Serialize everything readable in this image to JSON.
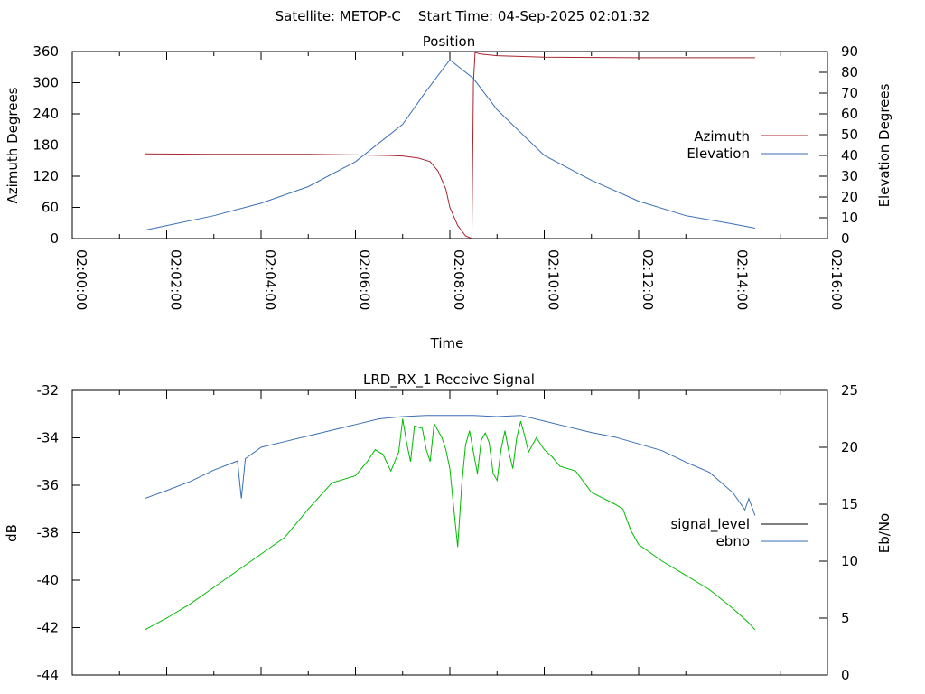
{
  "page_title": "Satellite: METOP-C    Start Time: 04-Sep-2025 02:01:32",
  "colors": {
    "azimuth": "#a8252f",
    "elevation": "#3a6fb5",
    "signal_level": "#000000",
    "ebno": "#3a6fb5",
    "signal_green": "#00bb00",
    "axis": "#000000",
    "background": "#ffffff"
  },
  "chart_data": [
    {
      "type": "line",
      "title": "Position",
      "xlabel": "Time",
      "ylabel": "Azimuth Degrees",
      "y2label": "Elevation Degrees",
      "xlim": [
        "02:00:00",
        "02:16:00"
      ],
      "x_ticks": [
        "02:00:00",
        "02:02:00",
        "02:04:00",
        "02:06:00",
        "02:08:00",
        "02:10:00",
        "02:12:00",
        "02:14:00",
        "02:16:00"
      ],
      "ylim": [
        0,
        360
      ],
      "y_ticks": [
        "0",
        "60",
        "120",
        "180",
        "240",
        "300",
        "360"
      ],
      "y2lim": [
        0,
        90
      ],
      "y2_ticks": [
        "0",
        "10",
        "20",
        "30",
        "40",
        "50",
        "60",
        "70",
        "80",
        "90"
      ],
      "grid": false,
      "legend_position": "right-middle",
      "series": [
        {
          "name": "Azimuth",
          "axis": "y",
          "points": [
            [
              "02:01:32",
              163
            ],
            [
              "02:03:00",
              162
            ],
            [
              "02:04:00",
              162
            ],
            [
              "02:05:00",
              162
            ],
            [
              "02:06:00",
              161
            ],
            [
              "02:06:40",
              160
            ],
            [
              "02:07:00",
              159
            ],
            [
              "02:07:20",
              155
            ],
            [
              "02:07:35",
              148
            ],
            [
              "02:07:45",
              130
            ],
            [
              "02:07:55",
              95
            ],
            [
              "02:08:00",
              60
            ],
            [
              "02:08:10",
              25
            ],
            [
              "02:08:20",
              5
            ],
            [
              "02:08:28",
              0
            ],
            [
              "02:08:30",
              300
            ],
            [
              "02:08:32",
              358
            ],
            [
              "02:08:40",
              355
            ],
            [
              "02:09:00",
              352
            ],
            [
              "02:10:00",
              349
            ],
            [
              "02:12:00",
              348
            ],
            [
              "02:14:00",
              348
            ],
            [
              "02:14:28",
              348
            ]
          ]
        },
        {
          "name": "Elevation",
          "axis": "y2",
          "points": [
            [
              "02:01:32",
              4
            ],
            [
              "02:03:00",
              11
            ],
            [
              "02:04:00",
              17
            ],
            [
              "02:05:00",
              25
            ],
            [
              "02:06:00",
              37
            ],
            [
              "02:07:00",
              55
            ],
            [
              "02:07:30",
              71
            ],
            [
              "02:08:00",
              86
            ],
            [
              "02:08:30",
              77
            ],
            [
              "02:09:00",
              62
            ],
            [
              "02:10:00",
              40
            ],
            [
              "02:11:00",
              28
            ],
            [
              "02:12:00",
              18
            ],
            [
              "02:13:00",
              11
            ],
            [
              "02:14:00",
              7
            ],
            [
              "02:14:28",
              5
            ]
          ]
        }
      ]
    },
    {
      "type": "line",
      "title": "LRD_RX_1 Receive Signal",
      "xlabel": "",
      "ylabel": "dB",
      "y2label": "Eb/No",
      "xlim": [
        "02:00:00",
        "02:16:00"
      ],
      "ylim": [
        -44,
        -32
      ],
      "y_ticks": [
        "-32",
        "-34",
        "-36",
        "-38",
        "-40",
        "-42",
        "-44"
      ],
      "y2lim": [
        0,
        25
      ],
      "y2_ticks": [
        "0",
        "5",
        "10",
        "15",
        "20",
        "25"
      ],
      "grid": false,
      "legend_position": "right-middle",
      "series": [
        {
          "name": "signal_level",
          "axis": "y",
          "points": [
            [
              "02:01:32",
              -42.1
            ],
            [
              "02:02:00",
              -41.6
            ],
            [
              "02:02:30",
              -41.0
            ],
            [
              "02:03:00",
              -40.3
            ],
            [
              "02:03:30",
              -39.6
            ],
            [
              "02:04:00",
              -38.9
            ],
            [
              "02:04:30",
              -38.2
            ],
            [
              "02:05:00",
              -37.0
            ],
            [
              "02:05:30",
              -35.9
            ],
            [
              "02:06:00",
              -35.6
            ],
            [
              "02:06:15",
              -35.0
            ],
            [
              "02:06:25",
              -34.5
            ],
            [
              "02:06:35",
              -34.7
            ],
            [
              "02:06:45",
              -35.4
            ],
            [
              "02:06:55",
              -34.6
            ],
            [
              "02:07:00",
              -33.2
            ],
            [
              "02:07:05",
              -34.2
            ],
            [
              "02:07:10",
              -35.0
            ],
            [
              "02:07:15",
              -33.5
            ],
            [
              "02:07:25",
              -33.6
            ],
            [
              "02:07:30",
              -34.5
            ],
            [
              "02:07:35",
              -35.0
            ],
            [
              "02:07:40",
              -33.4
            ],
            [
              "02:07:50",
              -34.0
            ],
            [
              "02:07:55",
              -34.5
            ],
            [
              "02:08:00",
              -35.3
            ],
            [
              "02:08:05",
              -37.0
            ],
            [
              "02:08:10",
              -38.6
            ],
            [
              "02:08:15",
              -36.0
            ],
            [
              "02:08:20",
              -34.3
            ],
            [
              "02:08:25",
              -33.7
            ],
            [
              "02:08:30",
              -34.6
            ],
            [
              "02:08:35",
              -35.5
            ],
            [
              "02:08:40",
              -34.1
            ],
            [
              "02:08:45",
              -33.8
            ],
            [
              "02:08:50",
              -34.2
            ],
            [
              "02:08:55",
              -35.5
            ],
            [
              "02:09:00",
              -35.8
            ],
            [
              "02:09:05",
              -34.5
            ],
            [
              "02:09:10",
              -33.7
            ],
            [
              "02:09:15",
              -34.6
            ],
            [
              "02:09:20",
              -35.3
            ],
            [
              "02:09:25",
              -34.0
            ],
            [
              "02:09:30",
              -33.3
            ],
            [
              "02:09:35",
              -33.9
            ],
            [
              "02:09:40",
              -34.6
            ],
            [
              "02:09:50",
              -34.0
            ],
            [
              "02:10:00",
              -34.5
            ],
            [
              "02:10:10",
              -34.8
            ],
            [
              "02:10:20",
              -35.2
            ],
            [
              "02:10:40",
              -35.4
            ],
            [
              "02:11:00",
              -36.3
            ],
            [
              "02:11:30",
              -36.8
            ],
            [
              "02:11:40",
              -37.0
            ],
            [
              "02:11:50",
              -37.9
            ],
            [
              "02:12:00",
              -38.5
            ],
            [
              "02:12:30",
              -39.2
            ],
            [
              "02:13:00",
              -39.8
            ],
            [
              "02:13:30",
              -40.4
            ],
            [
              "02:14:00",
              -41.2
            ],
            [
              "02:14:20",
              -41.8
            ],
            [
              "02:14:28",
              -42.1
            ]
          ]
        },
        {
          "name": "ebno",
          "axis": "y2",
          "points": [
            [
              "02:01:32",
              15.5
            ],
            [
              "02:02:00",
              16.2
            ],
            [
              "02:02:30",
              17.0
            ],
            [
              "02:03:00",
              18.0
            ],
            [
              "02:03:30",
              18.8
            ],
            [
              "02:03:35",
              15.5
            ],
            [
              "02:03:40",
              19.0
            ],
            [
              "02:04:00",
              20.0
            ],
            [
              "02:04:30",
              20.5
            ],
            [
              "02:05:00",
              21.0
            ],
            [
              "02:05:30",
              21.5
            ],
            [
              "02:06:00",
              22.0
            ],
            [
              "02:06:30",
              22.5
            ],
            [
              "02:07:00",
              22.7
            ],
            [
              "02:07:30",
              22.8
            ],
            [
              "02:08:00",
              22.8
            ],
            [
              "02:08:30",
              22.8
            ],
            [
              "02:09:00",
              22.7
            ],
            [
              "02:09:30",
              22.8
            ],
            [
              "02:10:00",
              22.3
            ],
            [
              "02:10:30",
              21.8
            ],
            [
              "02:11:00",
              21.3
            ],
            [
              "02:11:30",
              20.9
            ],
            [
              "02:12:00",
              20.3
            ],
            [
              "02:12:30",
              19.7
            ],
            [
              "02:13:00",
              18.7
            ],
            [
              "02:13:30",
              17.8
            ],
            [
              "02:14:00",
              16.0
            ],
            [
              "02:14:15",
              14.5
            ],
            [
              "02:14:20",
              15.5
            ],
            [
              "02:14:28",
              14.0
            ]
          ]
        }
      ]
    }
  ]
}
